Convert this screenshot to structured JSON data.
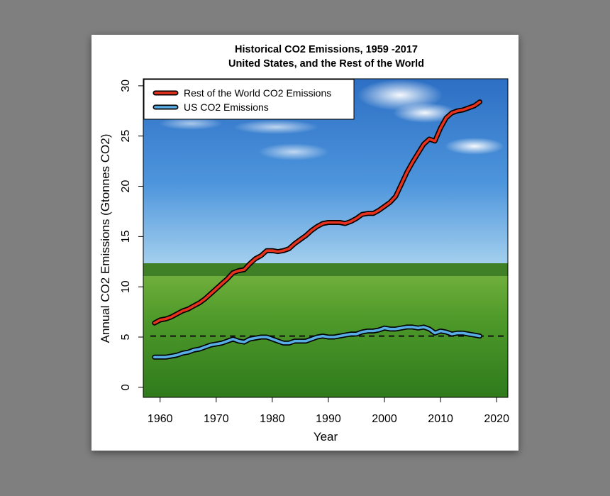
{
  "chart_data": {
    "type": "line",
    "title": "Historical CO2 Emissions, 1959 -2017",
    "subtitle": "United States, and the Rest of the World",
    "xlabel": "Year",
    "ylabel": "Annual CO2 Emissions (Gtonnes CO2)",
    "xlim": [
      1957,
      2022
    ],
    "ylim": [
      -1.0,
      30.7
    ],
    "xticks": [
      "1960",
      "1970",
      "1980",
      "1990",
      "2000",
      "2010",
      "2020"
    ],
    "yticks": [
      "0",
      "5",
      "10",
      "15",
      "20",
      "25",
      "30"
    ],
    "legend": {
      "position": "top-left"
    },
    "reference_line": {
      "y": 5.1,
      "style": "dashed",
      "color": "#111111"
    },
    "background": "sky over green field photograph",
    "series": [
      {
        "name": "Rest of the World CO2 Emissions",
        "color": "#e8321e",
        "x": [
          1959,
          1960,
          1961,
          1962,
          1963,
          1964,
          1965,
          1966,
          1967,
          1968,
          1969,
          1970,
          1971,
          1972,
          1973,
          1974,
          1975,
          1976,
          1977,
          1978,
          1979,
          1980,
          1981,
          1982,
          1983,
          1984,
          1985,
          1986,
          1987,
          1988,
          1989,
          1990,
          1991,
          1992,
          1993,
          1994,
          1995,
          1996,
          1997,
          1998,
          1999,
          2000,
          2001,
          2002,
          2003,
          2004,
          2005,
          2006,
          2007,
          2008,
          2009,
          2010,
          2011,
          2012,
          2013,
          2014,
          2015,
          2016,
          2017
        ],
        "values": [
          6.4,
          6.7,
          6.8,
          7.0,
          7.3,
          7.6,
          7.8,
          8.1,
          8.4,
          8.8,
          9.3,
          9.8,
          10.3,
          10.8,
          11.4,
          11.6,
          11.7,
          12.3,
          12.8,
          13.1,
          13.6,
          13.6,
          13.5,
          13.6,
          13.8,
          14.3,
          14.7,
          15.1,
          15.6,
          16.0,
          16.3,
          16.4,
          16.4,
          16.4,
          16.3,
          16.5,
          16.8,
          17.2,
          17.3,
          17.3,
          17.6,
          18.0,
          18.4,
          19.0,
          20.2,
          21.4,
          22.4,
          23.3,
          24.2,
          24.7,
          24.5,
          25.8,
          26.8,
          27.3,
          27.5,
          27.6,
          27.8,
          28.0,
          28.4
        ]
      },
      {
        "name": "US CO2 Emissions",
        "color": "#5aaee6",
        "x": [
          1959,
          1960,
          1961,
          1962,
          1963,
          1964,
          1965,
          1966,
          1967,
          1968,
          1969,
          1970,
          1971,
          1972,
          1973,
          1974,
          1975,
          1976,
          1977,
          1978,
          1979,
          1980,
          1981,
          1982,
          1983,
          1984,
          1985,
          1986,
          1987,
          1988,
          1989,
          1990,
          1991,
          1992,
          1993,
          1994,
          1995,
          1996,
          1997,
          1998,
          1999,
          2000,
          2001,
          2002,
          2003,
          2004,
          2005,
          2006,
          2007,
          2008,
          2009,
          2010,
          2011,
          2012,
          2013,
          2014,
          2015,
          2016,
          2017
        ],
        "values": [
          3.0,
          3.0,
          3.0,
          3.1,
          3.2,
          3.4,
          3.5,
          3.7,
          3.8,
          4.0,
          4.2,
          4.3,
          4.4,
          4.6,
          4.8,
          4.6,
          4.5,
          4.8,
          4.9,
          5.0,
          5.0,
          4.8,
          4.6,
          4.4,
          4.4,
          4.6,
          4.6,
          4.6,
          4.8,
          5.0,
          5.1,
          5.0,
          5.0,
          5.1,
          5.2,
          5.3,
          5.3,
          5.5,
          5.6,
          5.6,
          5.7,
          5.9,
          5.8,
          5.8,
          5.9,
          6.0,
          6.0,
          5.9,
          6.0,
          5.8,
          5.4,
          5.6,
          5.5,
          5.3,
          5.4,
          5.4,
          5.3,
          5.2,
          5.1
        ]
      }
    ]
  }
}
